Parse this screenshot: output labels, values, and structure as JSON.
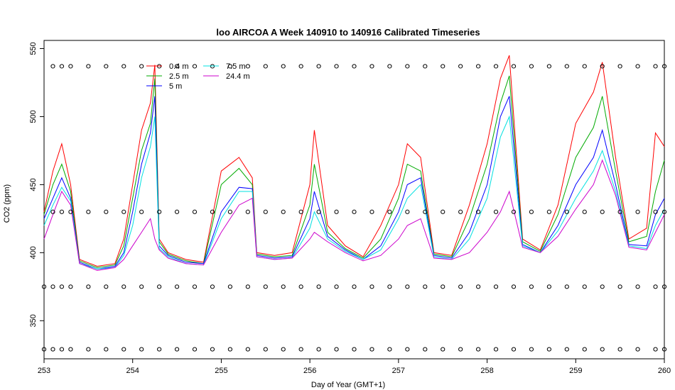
{
  "chart_data": {
    "type": "line",
    "title": "loo AIRCOA A  Week 140910 to 140916  Calibrated Timeseries",
    "xlabel": "Day of Year (GMT+1)",
    "ylabel": "CO2 (ppm)",
    "xlim": [
      253,
      260
    ],
    "ylim": [
      322,
      556
    ],
    "x_ticks": [
      253,
      254,
      255,
      256,
      257,
      258,
      259,
      260
    ],
    "y_ticks": [
      350,
      400,
      450,
      500,
      550
    ],
    "grid": false,
    "legend_position": "top-left",
    "series": [
      {
        "name": "0.4 m",
        "color": "#ff0000",
        "x": [
          253.0,
          253.1,
          253.2,
          253.3,
          253.4,
          253.6,
          253.8,
          253.9,
          254.0,
          254.1,
          254.2,
          254.25,
          254.3,
          254.4,
          254.6,
          254.8,
          255.0,
          255.2,
          255.35,
          255.4,
          255.6,
          255.8,
          256.0,
          256.05,
          256.2,
          256.4,
          256.6,
          256.8,
          257.0,
          257.1,
          257.25,
          257.4,
          257.6,
          257.8,
          258.0,
          258.15,
          258.25,
          258.4,
          258.6,
          258.8,
          259.0,
          259.2,
          259.3,
          259.45,
          259.6,
          259.8,
          259.9,
          260.0
        ],
        "y": [
          430,
          460,
          480,
          450,
          395,
          390,
          392,
          410,
          450,
          490,
          510,
          538,
          410,
          400,
          395,
          393,
          460,
          470,
          455,
          400,
          398,
          400,
          450,
          490,
          420,
          405,
          397,
          420,
          450,
          480,
          470,
          400,
          398,
          435,
          480,
          528,
          545,
          410,
          402,
          435,
          495,
          518,
          540,
          470,
          410,
          418,
          488,
          478
        ]
      },
      {
        "name": "2.5 m",
        "color": "#00aa00",
        "x": [
          253.0,
          253.1,
          253.2,
          253.3,
          253.4,
          253.6,
          253.8,
          253.9,
          254.0,
          254.1,
          254.2,
          254.25,
          254.3,
          254.4,
          254.6,
          254.8,
          255.0,
          255.2,
          255.35,
          255.4,
          255.6,
          255.8,
          256.0,
          256.05,
          256.2,
          256.4,
          256.6,
          256.8,
          257.0,
          257.1,
          257.25,
          257.4,
          257.6,
          257.8,
          258.0,
          258.15,
          258.25,
          258.4,
          258.6,
          258.8,
          259.0,
          259.2,
          259.3,
          259.45,
          259.6,
          259.8,
          259.9,
          260.0
        ],
        "y": [
          428,
          450,
          465,
          445,
          394,
          389,
          391,
          405,
          440,
          475,
          495,
          528,
          408,
          399,
          394,
          392,
          450,
          462,
          450,
          399,
          397,
          398,
          435,
          465,
          415,
          403,
          396,
          410,
          440,
          465,
          460,
          399,
          397,
          425,
          465,
          510,
          530,
          408,
          401,
          428,
          470,
          492,
          515,
          460,
          408,
          412,
          445,
          468
        ]
      },
      {
        "name": "5 m",
        "color": "#0000ff",
        "x": [
          253.0,
          253.1,
          253.2,
          253.3,
          253.4,
          253.6,
          253.8,
          253.9,
          254.0,
          254.1,
          254.2,
          254.25,
          254.3,
          254.4,
          254.6,
          254.8,
          255.0,
          255.2,
          255.35,
          255.4,
          255.6,
          255.8,
          256.0,
          256.05,
          256.2,
          256.4,
          256.6,
          256.8,
          257.0,
          257.1,
          257.25,
          257.4,
          257.6,
          257.8,
          258.0,
          258.15,
          258.25,
          258.4,
          258.6,
          258.8,
          259.0,
          259.2,
          259.3,
          259.45,
          259.6,
          259.8,
          259.9,
          260.0
        ],
        "y": [
          425,
          440,
          455,
          440,
          393,
          388,
          390,
          400,
          430,
          465,
          488,
          515,
          405,
          398,
          393,
          392,
          430,
          448,
          447,
          398,
          396,
          397,
          425,
          445,
          412,
          402,
          395,
          405,
          430,
          450,
          455,
          398,
          396,
          415,
          450,
          500,
          515,
          406,
          400,
          420,
          450,
          470,
          490,
          450,
          406,
          405,
          428,
          440
        ]
      },
      {
        "name": "7.5 m",
        "color": "#00e0e0",
        "x": [
          253.0,
          253.1,
          253.2,
          253.3,
          253.4,
          253.6,
          253.8,
          253.9,
          254.0,
          254.1,
          254.2,
          254.25,
          254.3,
          254.4,
          254.6,
          254.8,
          255.0,
          255.2,
          255.35,
          255.4,
          255.6,
          255.8,
          256.0,
          256.05,
          256.2,
          256.4,
          256.6,
          256.8,
          257.0,
          257.1,
          257.25,
          257.4,
          257.6,
          257.8,
          258.0,
          258.15,
          258.25,
          258.4,
          258.6,
          258.8,
          259.0,
          259.2,
          259.3,
          259.45,
          259.6,
          259.8,
          259.9,
          260.0
        ],
        "y": [
          420,
          435,
          448,
          438,
          392,
          388,
          389,
          398,
          420,
          455,
          478,
          500,
          403,
          397,
          392,
          391,
          425,
          445,
          445,
          397,
          395,
          396,
          418,
          430,
          410,
          401,
          395,
          402,
          425,
          440,
          450,
          397,
          395,
          410,
          440,
          485,
          500,
          405,
          400,
          416,
          440,
          460,
          475,
          445,
          405,
          403,
          420,
          432
        ]
      },
      {
        "name": "24.4 m",
        "color": "#cc00cc",
        "x": [
          253.0,
          253.1,
          253.2,
          253.3,
          253.4,
          253.6,
          253.8,
          253.9,
          254.0,
          254.1,
          254.2,
          254.25,
          254.3,
          254.4,
          254.6,
          254.8,
          255.0,
          255.2,
          255.35,
          255.4,
          255.6,
          255.8,
          256.0,
          256.05,
          256.2,
          256.4,
          256.6,
          256.8,
          257.0,
          257.1,
          257.25,
          257.4,
          257.6,
          257.8,
          258.0,
          258.15,
          258.25,
          258.4,
          258.6,
          258.8,
          259.0,
          259.2,
          259.3,
          259.45,
          259.6,
          259.8,
          259.9,
          260.0
        ],
        "y": [
          410,
          428,
          445,
          435,
          392,
          387,
          389,
          395,
          405,
          415,
          425,
          410,
          402,
          396,
          392,
          391,
          415,
          435,
          440,
          397,
          395,
          396,
          410,
          415,
          408,
          400,
          394,
          398,
          410,
          420,
          425,
          396,
          395,
          400,
          415,
          430,
          445,
          404,
          400,
          412,
          432,
          450,
          468,
          442,
          404,
          402,
          415,
          428
        ]
      },
      {
        "name": "",
        "marker": "circle",
        "color": "#000000",
        "x": [
          253.1,
          253.2,
          253.3,
          253.5,
          253.7,
          253.9,
          254.1,
          254.3,
          254.5,
          254.7,
          254.9,
          255.1,
          255.3,
          255.5,
          255.7,
          255.9,
          256.1,
          256.3,
          256.5,
          256.7,
          256.9,
          257.1,
          257.3,
          257.5,
          257.7,
          257.9,
          258.1,
          258.3,
          258.5,
          258.7,
          258.9,
          259.1,
          259.3,
          259.5,
          259.7,
          259.9,
          260.0
        ],
        "y": [
          537,
          537,
          537,
          537,
          537,
          537,
          537,
          537,
          537,
          537,
          537,
          537,
          537,
          537,
          537,
          537,
          537,
          537,
          537,
          537,
          537,
          537,
          537,
          537,
          537,
          537,
          537,
          537,
          537,
          537,
          537,
          537,
          537,
          537,
          537,
          537,
          537
        ]
      },
      {
        "name": "",
        "marker": "circle",
        "color": "#000000",
        "x": [
          253.1,
          253.2,
          253.3,
          253.5,
          253.7,
          253.9,
          254.1,
          254.3,
          254.5,
          254.7,
          254.9,
          255.1,
          255.3,
          255.5,
          255.7,
          255.9,
          256.1,
          256.3,
          256.5,
          256.7,
          256.9,
          257.1,
          257.3,
          257.5,
          257.7,
          257.9,
          258.1,
          258.3,
          258.5,
          258.7,
          258.9,
          259.1,
          259.3,
          259.5,
          259.7,
          259.9,
          260.0
        ],
        "y": [
          430,
          430,
          430,
          430,
          430,
          430,
          430,
          430,
          430,
          430,
          430,
          430,
          430,
          430,
          430,
          430,
          430,
          430,
          430,
          430,
          430,
          430,
          430,
          430,
          430,
          430,
          430,
          430,
          430,
          430,
          430,
          430,
          430,
          430,
          430,
          430,
          430
        ]
      },
      {
        "name": "",
        "marker": "circle",
        "color": "#000000",
        "x": [
          253.0,
          253.1,
          253.2,
          253.3,
          253.5,
          253.7,
          253.9,
          254.1,
          254.3,
          254.5,
          254.7,
          254.9,
          255.1,
          255.3,
          255.5,
          255.7,
          255.9,
          256.1,
          256.3,
          256.5,
          256.7,
          256.9,
          257.1,
          257.3,
          257.5,
          257.7,
          257.9,
          258.1,
          258.3,
          258.5,
          258.7,
          258.9,
          259.1,
          259.3,
          259.5,
          259.7,
          259.9,
          260.0
        ],
        "y": [
          375,
          375,
          375,
          375,
          375,
          375,
          375,
          375,
          375,
          375,
          375,
          375,
          375,
          375,
          375,
          375,
          375,
          375,
          375,
          375,
          375,
          375,
          375,
          375,
          375,
          375,
          375,
          375,
          375,
          375,
          375,
          375,
          375,
          375,
          375,
          375,
          375,
          375
        ]
      },
      {
        "name": "",
        "marker": "circle",
        "color": "#000000",
        "x": [
          253.0,
          253.1,
          253.2,
          253.3,
          253.5,
          253.7,
          253.9,
          254.1,
          254.3,
          254.5,
          254.7,
          254.9,
          255.1,
          255.3,
          255.5,
          255.7,
          255.9,
          256.1,
          256.3,
          256.5,
          256.7,
          256.9,
          257.1,
          257.3,
          257.5,
          257.7,
          257.9,
          258.1,
          258.3,
          258.5,
          258.7,
          258.9,
          259.1,
          259.3,
          259.5,
          259.7,
          259.9,
          260.0
        ],
        "y": [
          329,
          329,
          329,
          329,
          329,
          329,
          329,
          329,
          329,
          329,
          329,
          329,
          329,
          329,
          329,
          329,
          329,
          329,
          329,
          329,
          329,
          329,
          329,
          329,
          329,
          329,
          329,
          329,
          329,
          329,
          329,
          329,
          329,
          329,
          329,
          329,
          329,
          329
        ]
      }
    ]
  }
}
